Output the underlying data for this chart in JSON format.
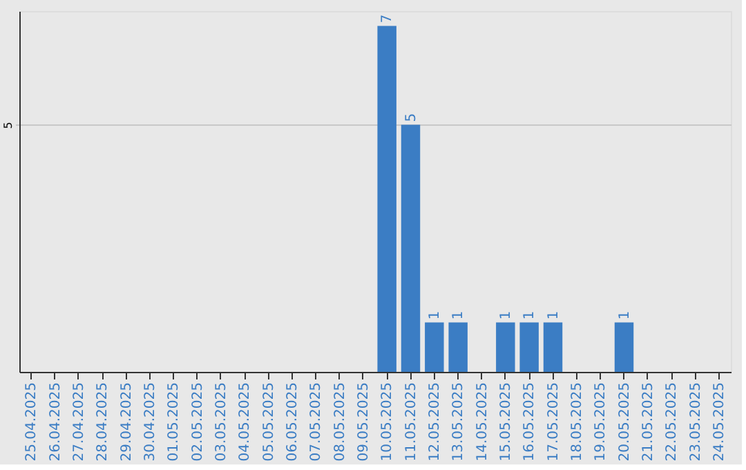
{
  "chart_data": {
    "type": "bar",
    "categories": [
      "25.04.2025",
      "26.04.2025",
      "27.04.2025",
      "28.04.2025",
      "29.04.2025",
      "30.04.2025",
      "01.05.2025",
      "02.05.2025",
      "03.05.2025",
      "04.05.2025",
      "05.05.2025",
      "06.05.2025",
      "07.05.2025",
      "08.05.2025",
      "09.05.2025",
      "10.05.2025",
      "11.05.2025",
      "12.05.2025",
      "13.05.2025",
      "14.05.2025",
      "15.05.2025",
      "16.05.2025",
      "17.05.2025",
      "18.05.2025",
      "19.05.2025",
      "20.05.2025",
      "21.05.2025",
      "22.05.2025",
      "23.05.2025",
      "24.05.2025"
    ],
    "values": [
      null,
      null,
      null,
      null,
      null,
      null,
      null,
      null,
      null,
      null,
      null,
      null,
      null,
      null,
      null,
      7,
      5,
      1,
      1,
      null,
      1,
      1,
      1,
      null,
      null,
      1,
      null,
      null,
      null,
      null
    ],
    "color": "#3b7dc4",
    "ylim": [
      0,
      7.3
    ],
    "yticks": [
      5
    ],
    "grid": "y",
    "data_labels": true
  }
}
